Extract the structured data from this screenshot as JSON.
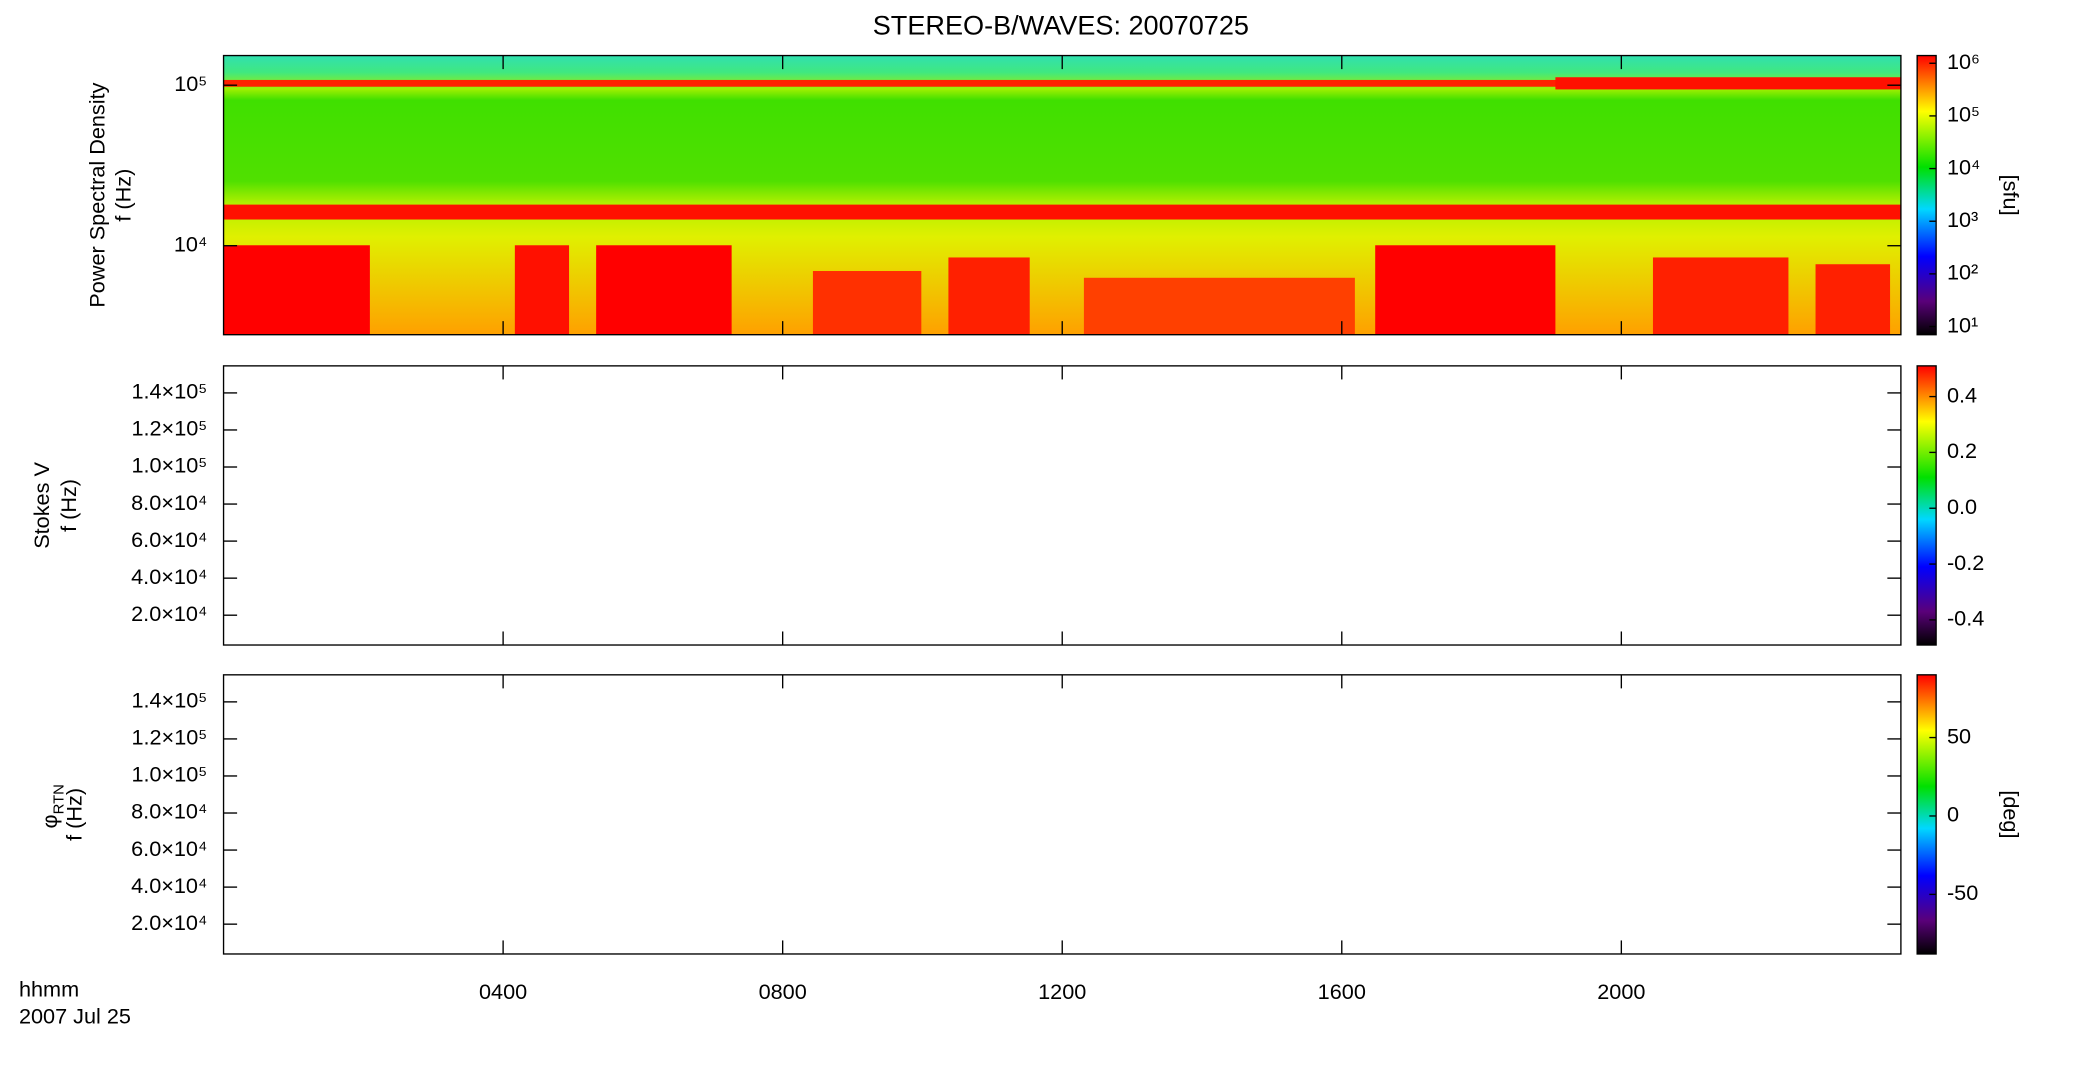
{
  "title": "STEREO-B/WAVES: 20070725",
  "x_axis": {
    "label": "hhmm",
    "date": "2007 Jul 25",
    "xlim": [
      0,
      24
    ],
    "xticks": [
      {
        "value": 4,
        "label": "0400"
      },
      {
        "value": 8,
        "label": "0800"
      },
      {
        "value": 12,
        "label": "1200"
      },
      {
        "value": 16,
        "label": "1600"
      },
      {
        "value": 20,
        "label": "2000"
      }
    ]
  },
  "chart_data": [
    {
      "type": "spectrogram",
      "ylabel": "Power Spectral Density",
      "ylabel2": "f (Hz)",
      "yscale": "log",
      "ylim": [
        2790,
        153000
      ],
      "yticks": [
        {
          "value": 10000,
          "label": "10⁴"
        },
        {
          "value": 100000,
          "label": "10⁵"
        }
      ],
      "colorbar": {
        "scale": "log",
        "zlim": [
          7,
          1400000
        ],
        "label": "[sfu]",
        "zticks": [
          {
            "value": 10,
            "label": "10¹"
          },
          {
            "value": 100,
            "label": "10²"
          },
          {
            "value": 1000,
            "label": "10³"
          },
          {
            "value": 10000,
            "label": "10⁴"
          },
          {
            "value": 100000,
            "label": "10⁵"
          },
          {
            "value": 1000000,
            "label": "10⁶"
          }
        ]
      }
    },
    {
      "type": "spectrogram",
      "ylabel": "Stokes V",
      "ylabel2": "f (Hz)",
      "yscale": "linear",
      "ylim": [
        3900,
        154600
      ],
      "yticks": [
        {
          "value": 20000,
          "label": "2.0×10⁴"
        },
        {
          "value": 40000,
          "label": "4.0×10⁴"
        },
        {
          "value": 60000,
          "label": "6.0×10⁴"
        },
        {
          "value": 80000,
          "label": "8.0×10⁴"
        },
        {
          "value": 100000,
          "label": "1.0×10⁵"
        },
        {
          "value": 120000,
          "label": "1.2×10⁵"
        },
        {
          "value": 140000,
          "label": "1.4×10⁵"
        }
      ],
      "colorbar": {
        "scale": "linear",
        "zlim": [
          -0.49,
          0.51
        ],
        "zticks": [
          -0.4,
          -0.2,
          {
            "value": 0,
            "label": "0.0"
          },
          0.2,
          0.4
        ]
      }
    },
    {
      "type": "spectrogram",
      "ylabel": "φ",
      "ylabel_sub": "RTN",
      "ylabel2": "f (Hz)",
      "yscale": "linear",
      "ylim": [
        3900,
        154600
      ],
      "yticks": [
        {
          "value": 20000,
          "label": "2.0×10⁴"
        },
        {
          "value": 40000,
          "label": "4.0×10⁴"
        },
        {
          "value": 60000,
          "label": "6.0×10⁴"
        },
        {
          "value": 80000,
          "label": "8.0×10⁴"
        },
        {
          "value": 100000,
          "label": "1.0×10⁵"
        },
        {
          "value": 120000,
          "label": "1.2×10⁵"
        },
        {
          "value": 140000,
          "label": "1.4×10⁵"
        }
      ],
      "colorbar": {
        "scale": "linear",
        "zlim": [
          -88,
          90
        ],
        "label": "[deg]",
        "zticks": [
          -50,
          0,
          50
        ]
      }
    }
  ]
}
